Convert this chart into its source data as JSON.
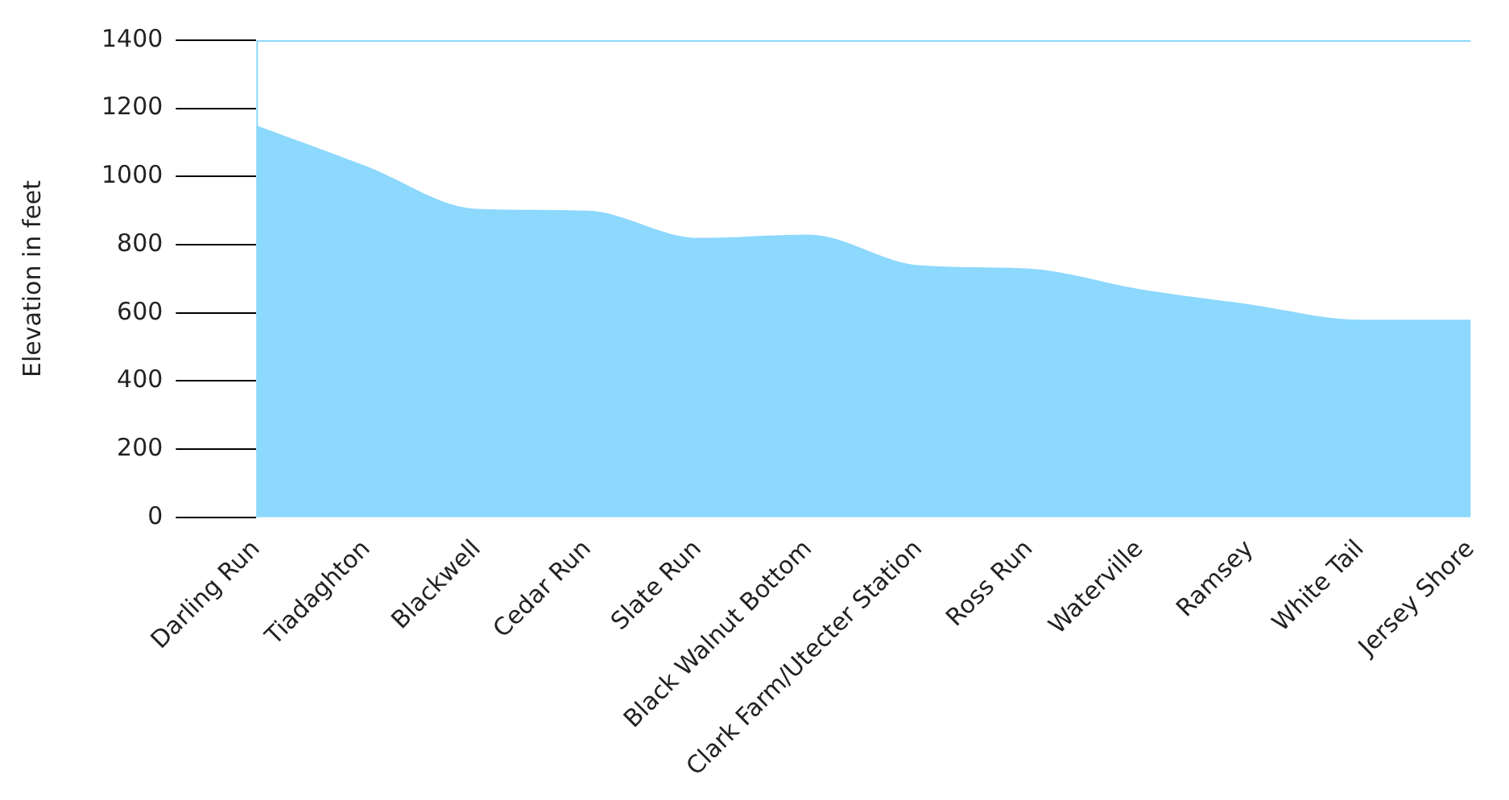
{
  "chart_data": {
    "type": "area",
    "ylabel": "Elevation in feet",
    "categories": [
      "Darling Run",
      "Tiadaghton",
      "Blackwell",
      "Cedar Run",
      "Slate Run",
      "Black Walnut Bottom",
      "Clark Farm/Utecter Station",
      "Ross Run",
      "Waterville",
      "Ramsey",
      "White Tail",
      "Jersey Shore"
    ],
    "values": [
      1150,
      1030,
      905,
      900,
      820,
      830,
      740,
      730,
      670,
      625,
      580,
      580
    ],
    "color": "#8dd8fd",
    "ylim": [
      0,
      1400
    ],
    "yticks": [
      0,
      200,
      400,
      600,
      800,
      1000,
      1200,
      1400
    ],
    "grid": false,
    "legend": false
  }
}
